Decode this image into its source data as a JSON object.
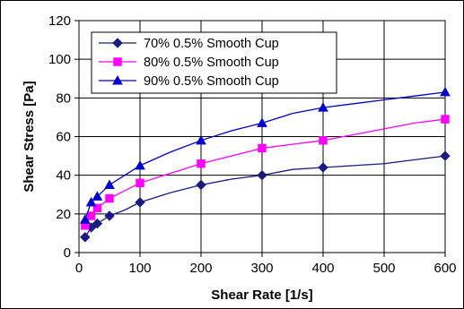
{
  "chart_data": {
    "type": "line",
    "xlabel": "Shear Rate [1/s]",
    "ylabel": "Shear Stress [Pa]",
    "xlim": [
      0,
      600
    ],
    "ylim": [
      0,
      120
    ],
    "x_ticks": [
      0,
      100,
      200,
      300,
      400,
      500,
      600
    ],
    "y_ticks": [
      0,
      20,
      40,
      60,
      80,
      100,
      120
    ],
    "grid": true,
    "legend_position": "top-left",
    "x": [
      10,
      20,
      30,
      50,
      100,
      200,
      300,
      400,
      600
    ],
    "series": [
      {
        "name": "70% 0.5% Smooth Cup",
        "color": "#1a1a80",
        "marker": "diamond",
        "values": [
          8,
          13,
          15,
          19,
          26,
          35,
          40,
          44,
          50
        ],
        "line_x": [
          10,
          20,
          30,
          50,
          75,
          100,
          150,
          200,
          250,
          300,
          350,
          400,
          450,
          500,
          550,
          600
        ],
        "line_values": [
          8,
          13,
          15,
          19,
          22,
          26,
          31,
          35,
          38,
          40,
          43,
          44,
          45,
          46,
          48,
          50
        ]
      },
      {
        "name": "80% 0.5% Smooth Cup",
        "color": "#ff00ff",
        "marker": "square",
        "values": [
          14,
          19,
          23,
          28,
          36,
          46,
          54,
          58,
          69
        ],
        "line_x": [
          10,
          20,
          30,
          50,
          75,
          100,
          150,
          200,
          250,
          300,
          350,
          400,
          450,
          500,
          550,
          600
        ],
        "line_values": [
          14,
          19,
          23,
          28,
          32,
          36,
          41,
          46,
          50,
          54,
          56,
          58,
          61,
          64,
          67,
          69
        ]
      },
      {
        "name": "90% 0.5% Smooth Cup",
        "color": "#0000cc",
        "marker": "triangle",
        "values": [
          17,
          26,
          29,
          35,
          45,
          58,
          67,
          75,
          83
        ],
        "line_x": [
          10,
          20,
          30,
          50,
          75,
          100,
          150,
          200,
          250,
          300,
          350,
          400,
          450,
          500,
          550,
          600
        ],
        "line_values": [
          17,
          26,
          29,
          35,
          40,
          45,
          52,
          58,
          63,
          67,
          72,
          75,
          77,
          79,
          81,
          83
        ]
      }
    ]
  }
}
